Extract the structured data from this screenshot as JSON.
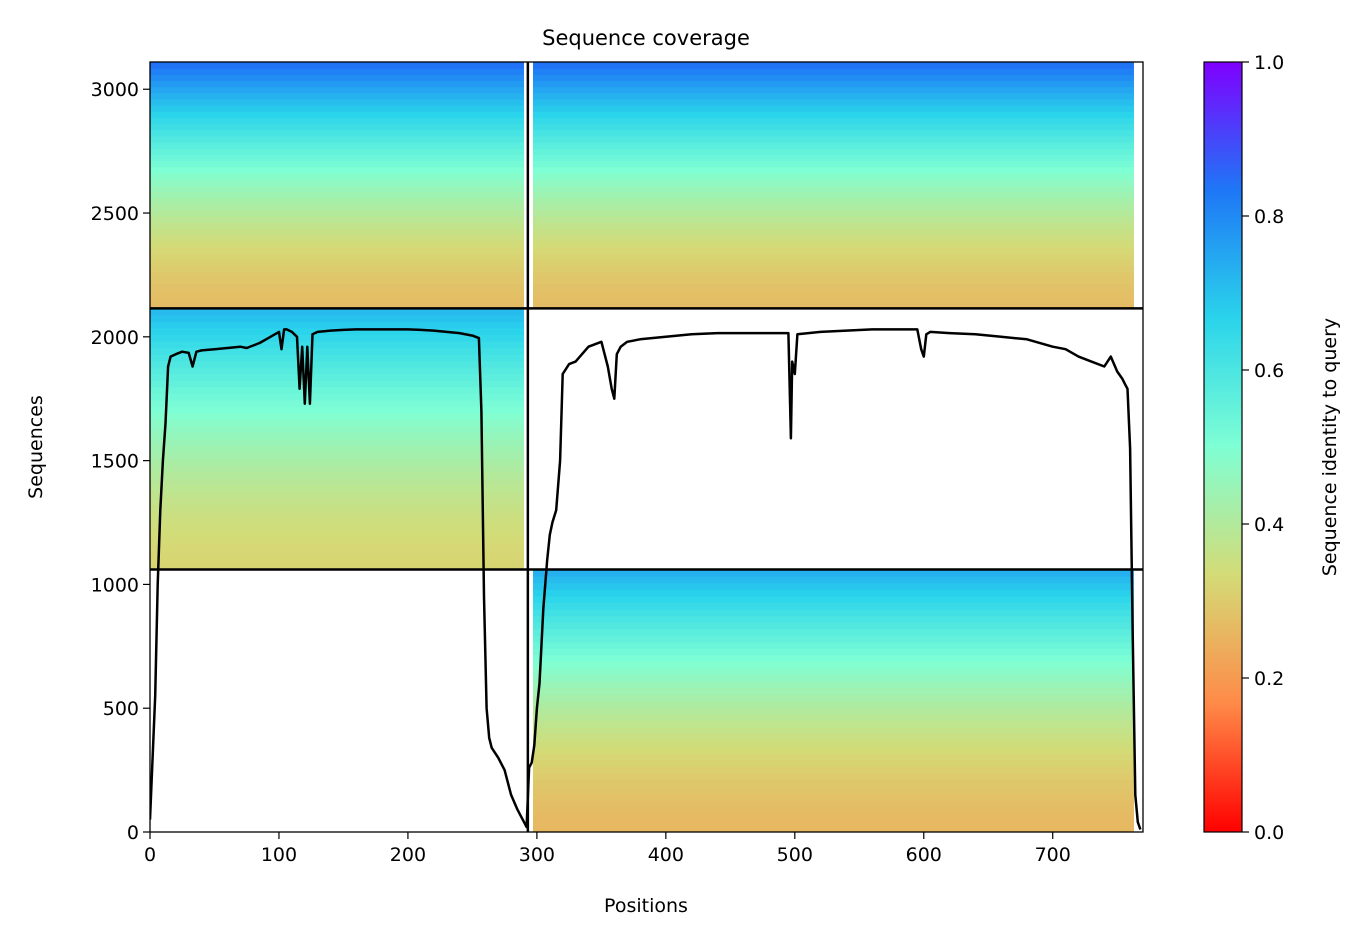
{
  "chart_data": {
    "type": "heatmap",
    "title": "Sequence coverage",
    "xlabel": "Positions",
    "ylabel": "Sequences",
    "xlim": [
      0,
      770
    ],
    "ylim": [
      0,
      3110
    ],
    "xticks": [
      0,
      100,
      200,
      300,
      400,
      500,
      600,
      700
    ],
    "yticks": [
      0,
      500,
      1000,
      1500,
      2000,
      2500,
      3000
    ],
    "colorbar": {
      "label": "Sequence identity to query",
      "range": [
        0,
        1
      ],
      "ticks": [
        "0.0",
        "0.2",
        "0.4",
        "0.6",
        "0.8",
        "1.0"
      ],
      "colormap": "rainbow",
      "stops": [
        "#ff0000",
        "#ff8a48",
        "#d4db76",
        "#7fffd4",
        "#2ad4eb",
        "#1e77f6",
        "#8000ff"
      ]
    },
    "block_boundaries": {
      "x": [
        293
      ],
      "y": [
        1060,
        2115
      ]
    },
    "blocks": [
      {
        "name": "chain-A-top",
        "x": [
          0,
          290
        ],
        "y": [
          2115,
          3110
        ],
        "identity_bottom": 0.27,
        "identity_top": 0.85
      },
      {
        "name": "chain-B-top",
        "x": [
          297,
          763
        ],
        "y": [
          2115,
          3110
        ],
        "identity_bottom": 0.27,
        "identity_top": 0.85
      },
      {
        "name": "chain-A-mid",
        "x": [
          0,
          290
        ],
        "y": [
          1060,
          2115
        ],
        "identity_bottom": 0.32,
        "identity_top": 0.72
      },
      {
        "name": "chain-B-bottom",
        "x": [
          297,
          763
        ],
        "y": [
          0,
          1060
        ],
        "identity_bottom": 0.26,
        "identity_top": 0.74
      }
    ],
    "coverage_line": {
      "color": "#000000",
      "x": [
        0,
        2,
        4,
        6,
        8,
        10,
        12,
        14,
        16,
        20,
        25,
        30,
        33,
        36,
        40,
        50,
        60,
        70,
        75,
        80,
        85,
        90,
        100,
        102,
        104,
        106,
        110,
        114,
        116,
        118,
        120,
        122,
        124,
        126,
        130,
        140,
        150,
        160,
        180,
        200,
        210,
        220,
        240,
        250,
        255,
        257,
        259,
        261,
        263,
        265,
        270,
        275,
        280,
        285,
        290,
        292,
        294,
        296,
        298,
        300,
        302,
        305,
        308,
        310,
        312,
        315,
        318,
        320,
        325,
        330,
        340,
        350,
        355,
        358,
        360,
        362,
        365,
        370,
        380,
        400,
        420,
        440,
        460,
        480,
        495,
        497,
        498,
        500,
        502,
        520,
        540,
        560,
        580,
        595,
        598,
        600,
        602,
        605,
        620,
        640,
        660,
        680,
        700,
        710,
        720,
        730,
        740,
        745,
        750,
        754,
        756,
        758,
        760,
        762,
        764,
        766,
        768
      ],
      "y": [
        50,
        300,
        550,
        1000,
        1300,
        1500,
        1650,
        1880,
        1920,
        1930,
        1940,
        1935,
        1880,
        1940,
        1945,
        1950,
        1955,
        1960,
        1955,
        1965,
        1975,
        1990,
        2020,
        1950,
        2030,
        2030,
        2020,
        2000,
        1790,
        1960,
        1730,
        1960,
        1730,
        2010,
        2020,
        2025,
        2028,
        2030,
        2030,
        2030,
        2028,
        2025,
        2015,
        2005,
        1995,
        1700,
        950,
        500,
        380,
        340,
        300,
        250,
        150,
        90,
        40,
        20,
        260,
        280,
        350,
        500,
        600,
        900,
        1100,
        1200,
        1250,
        1300,
        1500,
        1850,
        1890,
        1900,
        1960,
        1980,
        1880,
        1790,
        1750,
        1930,
        1960,
        1980,
        1990,
        2000,
        2010,
        2015,
        2015,
        2015,
        2015,
        1590,
        1900,
        1850,
        2010,
        2020,
        2025,
        2030,
        2030,
        2030,
        1950,
        1920,
        2010,
        2020,
        2015,
        2010,
        2000,
        1990,
        1960,
        1950,
        1920,
        1900,
        1880,
        1920,
        1860,
        1830,
        1810,
        1790,
        1550,
        800,
        150,
        40,
        10
      ]
    }
  }
}
